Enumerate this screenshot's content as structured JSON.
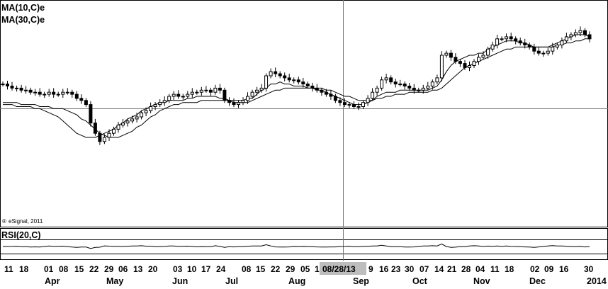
{
  "chart_data": {
    "type": "candlestick",
    "legend": [
      "MA(10,C)e",
      "MA(30,C)e"
    ],
    "indicator": {
      "label": "RSI(20,C)"
    },
    "copyright": "eSignal, 2011",
    "copyright_symbol": "®",
    "crosshair_date": "08/28/13",
    "year_label": "2014",
    "x_day_ticks": [
      "11",
      "18",
      "01",
      "08",
      "15",
      "22",
      "29",
      "06",
      "13",
      "20",
      "03",
      "10",
      "17",
      "24",
      "08",
      "15",
      "22",
      "29",
      "05",
      "12",
      "9",
      "16",
      "23",
      "30",
      "07",
      "14",
      "21",
      "28",
      "04",
      "11",
      "18",
      "02",
      "09",
      "16",
      "30"
    ],
    "x_month_labels": [
      "Apr",
      "May",
      "Jun",
      "Jul",
      "Aug",
      "Sep",
      "Oct",
      "Nov",
      "Dec"
    ],
    "y_range": [
      0,
      100
    ],
    "price_close": [
      66,
      65,
      64,
      64,
      63,
      63,
      62,
      62,
      61,
      61,
      62,
      61,
      61,
      62,
      62,
      61,
      59,
      58,
      56,
      47,
      42,
      38,
      40,
      42,
      44,
      46,
      47,
      48,
      49,
      50,
      52,
      53,
      55,
      56,
      57,
      58,
      60,
      61,
      60,
      60,
      61,
      62,
      62,
      63,
      63,
      62,
      64,
      63,
      58,
      57,
      56,
      57,
      58,
      60,
      62,
      63,
      64,
      70,
      72,
      71,
      70,
      69,
      68,
      68,
      67,
      66,
      65,
      64,
      63,
      62,
      61,
      60,
      58,
      57,
      56,
      56,
      55,
      55,
      57,
      59,
      62,
      64,
      68,
      69,
      67,
      66,
      66,
      65,
      64,
      63,
      63,
      64,
      65,
      67,
      69,
      80,
      81,
      79,
      77,
      76,
      74,
      75,
      77,
      79,
      80,
      83,
      85,
      88,
      88,
      89,
      88,
      87,
      86,
      85,
      84,
      82,
      81,
      81,
      82,
      84,
      85,
      87,
      89,
      90,
      91,
      92,
      90,
      88
    ],
    "ma10": [
      56,
      56,
      56,
      55,
      55,
      55,
      55,
      54,
      54,
      53,
      52,
      51,
      50,
      48,
      46,
      44,
      42,
      41,
      40,
      40,
      40,
      41,
      42,
      43,
      44,
      46,
      47,
      49,
      50,
      51,
      53,
      54,
      55,
      56,
      57,
      57,
      58,
      58,
      58,
      58,
      59,
      59,
      60,
      60,
      60,
      60,
      60,
      59,
      59,
      58,
      58,
      58,
      58,
      59,
      59,
      61,
      63,
      64,
      66,
      66,
      67,
      66,
      66,
      65,
      65,
      65,
      64,
      64,
      63,
      63,
      62,
      61,
      60,
      59,
      58,
      57,
      56,
      56,
      56,
      57,
      58,
      60,
      61,
      62,
      62,
      62,
      63,
      63,
      63,
      63,
      63,
      63,
      63,
      64,
      65,
      68,
      72,
      75,
      77,
      78,
      79,
      80,
      80,
      81,
      81,
      83,
      84,
      85,
      86,
      87,
      87,
      87,
      86,
      86,
      85,
      84,
      84,
      84,
      84,
      85,
      86,
      87,
      88,
      89,
      90,
      90,
      90,
      89
    ],
    "ma30": [
      57,
      57,
      57,
      57,
      56,
      56,
      56,
      56,
      55,
      55,
      55,
      54,
      54,
      54,
      53,
      52,
      51,
      49,
      48,
      46,
      44,
      42,
      41,
      40,
      40,
      40,
      41,
      42,
      43,
      45,
      46,
      48,
      50,
      51,
      53,
      54,
      55,
      56,
      56,
      57,
      57,
      57,
      57,
      58,
      58,
      58,
      58,
      58,
      58,
      58,
      57,
      57,
      57,
      57,
      58,
      59,
      60,
      61,
      62,
      63,
      63,
      64,
      64,
      64,
      64,
      64,
      64,
      64,
      64,
      64,
      63,
      63,
      62,
      61,
      60,
      60,
      59,
      58,
      58,
      58,
      58,
      59,
      59,
      60,
      60,
      61,
      61,
      61,
      62,
      62,
      62,
      62,
      62,
      63,
      63,
      64,
      66,
      68,
      70,
      72,
      74,
      75,
      76,
      77,
      78,
      79,
      80,
      81,
      82,
      83,
      83,
      84,
      84,
      84,
      84,
      84,
      84,
      84,
      84,
      84,
      85,
      85,
      86,
      86,
      87,
      87,
      88,
      88
    ]
  }
}
